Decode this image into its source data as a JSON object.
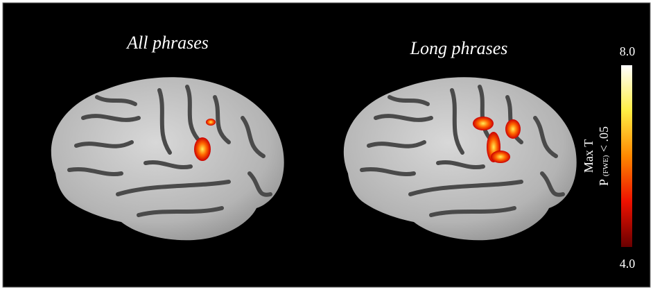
{
  "panels": [
    {
      "title": "All phrases"
    },
    {
      "title": "Long phrases"
    }
  ],
  "colorbar": {
    "max": "8.0",
    "min": "4.0",
    "label": "Max T",
    "sublabel_prefix": "P",
    "sublabel_sub": "(FWE)",
    "sublabel_suffix": "< .05"
  }
}
